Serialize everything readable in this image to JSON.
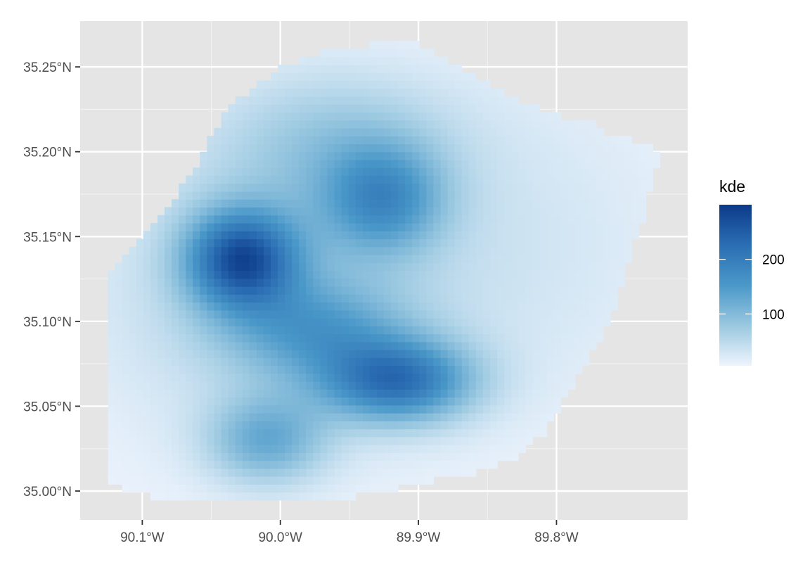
{
  "chart_data": {
    "type": "heatmap",
    "title": "",
    "xlabel": "",
    "ylabel": "",
    "x_range": [
      -90.145,
      -89.705
    ],
    "y_range": [
      34.983,
      35.277
    ],
    "x_ticks": [
      {
        "value": -90.1,
        "label": "90.1°W"
      },
      {
        "value": -90.0,
        "label": "90.0°W"
      },
      {
        "value": -89.9,
        "label": "89.9°W"
      },
      {
        "value": -89.8,
        "label": "89.8°W"
      }
    ],
    "y_ticks": [
      {
        "value": 35.0,
        "label": "35.00°N"
      },
      {
        "value": 35.05,
        "label": "35.05°N"
      },
      {
        "value": 35.1,
        "label": "35.10°N"
      },
      {
        "value": 35.15,
        "label": "35.15°N"
      },
      {
        "value": 35.2,
        "label": "35.20°N"
      },
      {
        "value": 35.25,
        "label": "35.25°N"
      }
    ],
    "grid": true,
    "fill_variable": "kde",
    "legend": {
      "title": "kde",
      "placement": "right",
      "range": [
        5,
        300
      ],
      "breaks": [
        {
          "value": 100,
          "label": "100"
        },
        {
          "value": 200,
          "label": "200"
        }
      ],
      "colors": [
        "#eef4fd",
        "#9ac8e0",
        "#4a98c9",
        "#2b6eb3",
        "#0c3a8a"
      ]
    },
    "region_boundary": [
      [
        -90.125,
        35.003
      ],
      [
        -90.125,
        35.13
      ],
      [
        -90.105,
        35.145
      ],
      [
        -90.08,
        35.168
      ],
      [
        -90.055,
        35.2
      ],
      [
        -90.04,
        35.225
      ],
      [
        -90.015,
        35.24
      ],
      [
        -90.0,
        35.25
      ],
      [
        -89.965,
        35.26
      ],
      [
        -89.937,
        35.262
      ],
      [
        -89.925,
        35.267
      ],
      [
        -89.895,
        35.262
      ],
      [
        -89.87,
        35.25
      ],
      [
        -89.84,
        35.235
      ],
      [
        -89.82,
        35.228
      ],
      [
        -89.8,
        35.222
      ],
      [
        -89.775,
        35.217
      ],
      [
        -89.76,
        35.21
      ],
      [
        -89.735,
        35.205
      ],
      [
        -89.722,
        35.199
      ],
      [
        -89.728,
        35.19
      ],
      [
        -89.738,
        35.16
      ],
      [
        -89.75,
        35.13
      ],
      [
        -89.762,
        35.1
      ],
      [
        -89.775,
        35.08
      ],
      [
        -89.79,
        35.06
      ],
      [
        -89.808,
        35.035
      ],
      [
        -89.83,
        35.02
      ],
      [
        -89.86,
        35.01
      ],
      [
        -89.9,
        35.005
      ],
      [
        -89.935,
        34.998
      ],
      [
        -89.975,
        34.993
      ],
      [
        -90.025,
        34.993
      ],
      [
        -90.085,
        34.994
      ],
      [
        -90.1,
        35.0
      ]
    ],
    "density_peaks": [
      {
        "lon": -90.028,
        "lat": 35.137,
        "height": 225,
        "spread_lon": 0.028,
        "spread_lat": 0.02
      },
      {
        "lon": -89.915,
        "lat": 35.065,
        "height": 190,
        "spread_lon": 0.038,
        "spread_lat": 0.017
      },
      {
        "lon": -89.975,
        "lat": 35.095,
        "height": 95,
        "spread_lon": 0.045,
        "spread_lat": 0.02
      },
      {
        "lon": -89.925,
        "lat": 35.172,
        "height": 125,
        "spread_lon": 0.03,
        "spread_lat": 0.022
      },
      {
        "lon": -90.01,
        "lat": 35.03,
        "height": 105,
        "spread_lon": 0.03,
        "spread_lat": 0.018
      },
      {
        "lon": -89.96,
        "lat": 35.205,
        "height": 60,
        "spread_lon": 0.06,
        "spread_lat": 0.03
      },
      {
        "lon": -90.0,
        "lat": 35.12,
        "height": 55,
        "spread_lon": 0.09,
        "spread_lat": 0.06
      },
      {
        "lon": -89.82,
        "lat": 35.15,
        "height": 20,
        "spread_lon": 0.08,
        "spread_lat": 0.07
      }
    ]
  }
}
